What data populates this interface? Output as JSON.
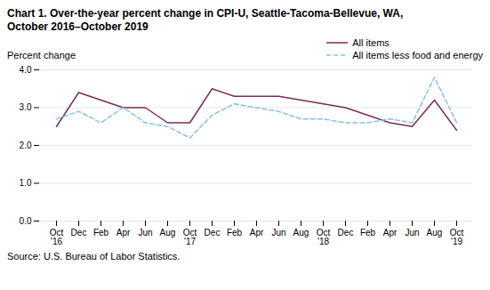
{
  "chart_data": {
    "type": "line",
    "title": "Chart 1. Over-the-year percent change in CPI-U, Seattle-Tacoma-Bellevue, WA,\nOctober 2016–October  2019",
    "ylabel": "Percent change",
    "source": "Source: U.S. Bureau of Labor Statistics.",
    "categories": [
      "Oct\n'16",
      "Dec",
      "Feb",
      "Apr",
      "Jun",
      "Aug",
      "Oct\n'17",
      "Dec",
      "Feb",
      "Apr",
      "Jun",
      "Aug",
      "Oct\n'18",
      "Dec",
      "Feb",
      "Apr",
      "Jun",
      "Aug",
      "Oct\n'19"
    ],
    "series": [
      {
        "name": "All items",
        "color": "#7b2d52",
        "line_style": "solid",
        "values": [
          2.5,
          3.4,
          3.2,
          3.0,
          3.0,
          2.6,
          2.6,
          3.5,
          3.3,
          3.3,
          3.3,
          3.2,
          3.1,
          3.0,
          2.8,
          2.6,
          2.5,
          3.2,
          2.4
        ]
      },
      {
        "name": "All items less food and energy",
        "color": "#85c1e9",
        "line_style": "dashed",
        "values": [
          2.7,
          2.9,
          2.6,
          3.0,
          2.6,
          2.5,
          2.2,
          2.8,
          3.1,
          3.0,
          2.9,
          2.7,
          2.7,
          2.6,
          2.6,
          2.7,
          2.6,
          3.8,
          2.6
        ]
      }
    ],
    "ylim": [
      0.0,
      4.0
    ],
    "yticks": [
      {
        "value": 0.0,
        "label": "0.0"
      },
      {
        "value": 1.0,
        "label": "1.0"
      },
      {
        "value": 2.0,
        "label": "2.0"
      },
      {
        "value": 3.0,
        "label": "3.0"
      },
      {
        "value": 4.0,
        "label": "4.0"
      }
    ],
    "grid": true,
    "legend": "upper right"
  }
}
